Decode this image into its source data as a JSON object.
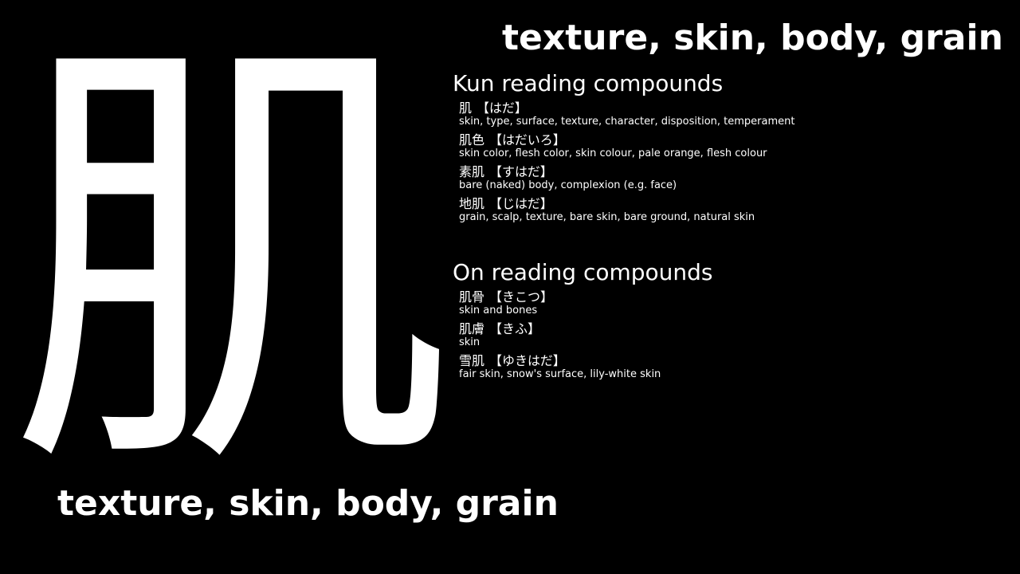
{
  "kanji": "肌",
  "title_top": "texture, skin, body, grain",
  "title_bottom": "texture, skin, body, grain",
  "kun_section": {
    "heading": "Kun reading compounds",
    "entries": [
      {
        "word": "肌",
        "reading": "【はだ】",
        "meaning": "skin, type, surface, texture, character, disposition, temperament"
      },
      {
        "word": "肌色",
        "reading": "【はだいろ】",
        "meaning": "skin color, flesh color, skin colour, pale orange, flesh colour"
      },
      {
        "word": "素肌",
        "reading": "【すはだ】",
        "meaning": "bare (naked) body, complexion (e.g. face)"
      },
      {
        "word": "地肌",
        "reading": "【じはだ】",
        "meaning": "grain, scalp, texture, bare skin, bare ground, natural skin"
      }
    ]
  },
  "on_section": {
    "heading": "On reading compounds",
    "entries": [
      {
        "word": "肌骨",
        "reading": "【きこつ】",
        "meaning": "skin and bones"
      },
      {
        "word": "肌膚",
        "reading": "【きふ】",
        "meaning": "skin"
      },
      {
        "word": "雪肌",
        "reading": "【ゆきはだ】",
        "meaning": "fair skin, snow's surface, lily-white skin"
      }
    ]
  },
  "colors": {
    "background": "#000000",
    "text": "#ffffff"
  }
}
